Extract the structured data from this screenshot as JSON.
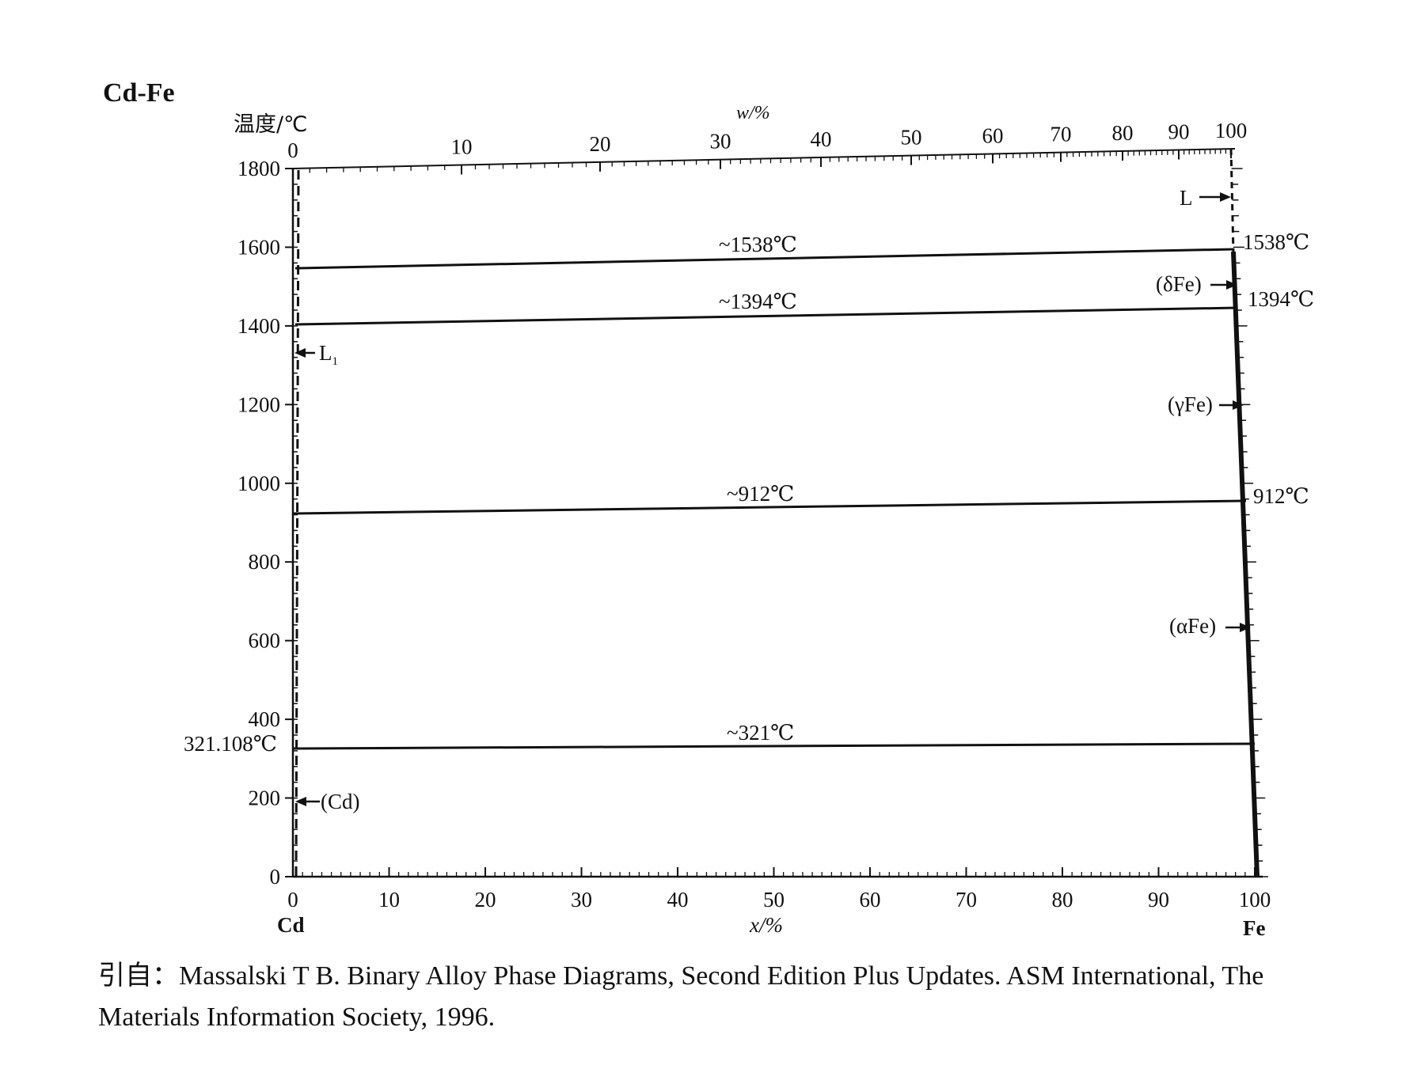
{
  "title": "Cd-Fe",
  "y_axis_label": "温度/℃",
  "top_axis_label": "w/%",
  "bottom_axis_label": "x/%",
  "left_element": "Cd",
  "right_element": "Fe",
  "y_ticks": [
    "1800",
    "1600",
    "1400",
    "1200",
    "1000",
    "800",
    "600",
    "400",
    "200",
    "0"
  ],
  "bottom_ticks": [
    "0",
    "10",
    "20",
    "30",
    "40",
    "50",
    "60",
    "70",
    "80",
    "90",
    "100"
  ],
  "top_ticks": [
    "0",
    "10",
    "20",
    "30",
    "40",
    "50",
    "60",
    "70",
    "80",
    "90",
    "100"
  ],
  "chart_data": {
    "type": "phase-diagram",
    "system": "Cd-Fe",
    "x_axis": {
      "label": "x/%",
      "range": [
        0,
        100
      ]
    },
    "top_axis": {
      "label": "w/%",
      "range": [
        0,
        100
      ]
    },
    "y_axis": {
      "label": "温度/℃",
      "range": [
        0,
        1800
      ]
    },
    "horizontal_lines": [
      {
        "label": "~1538℃",
        "temperature": 1538,
        "x_range": [
          0,
          98.5
        ]
      },
      {
        "label": "~1394℃",
        "temperature": 1394,
        "x_range": [
          0,
          98.8
        ]
      },
      {
        "label": "~912℃",
        "temperature": 912,
        "x_range": [
          0,
          99.2
        ]
      },
      {
        "label": "~321℃",
        "temperature": 321,
        "x_range": [
          0,
          99.6
        ]
      }
    ],
    "right_temperature_labels": [
      "1538℃",
      "1394℃",
      "912℃"
    ],
    "left_temperature_label": "321.108℃",
    "phase_labels": [
      {
        "label": "L",
        "side": "right",
        "temperature": 1720
      },
      {
        "label": "(δFe)",
        "side": "right",
        "temperature": 1470
      },
      {
        "label": "(γFe)",
        "side": "right",
        "temperature": 1160
      },
      {
        "label": "(αFe)",
        "side": "right",
        "temperature": 600
      },
      {
        "label": "L",
        "subscript": "1",
        "side": "left",
        "temperature": 1330
      },
      {
        "label": "(Cd)",
        "side": "left",
        "temperature": 185
      }
    ]
  },
  "caption": {
    "line1": "引自：Massalski T B. Binary Alloy Phase Diagrams, Second Edition Plus Updates. ASM International, The",
    "line2": "Materials Information Society, 1996."
  }
}
